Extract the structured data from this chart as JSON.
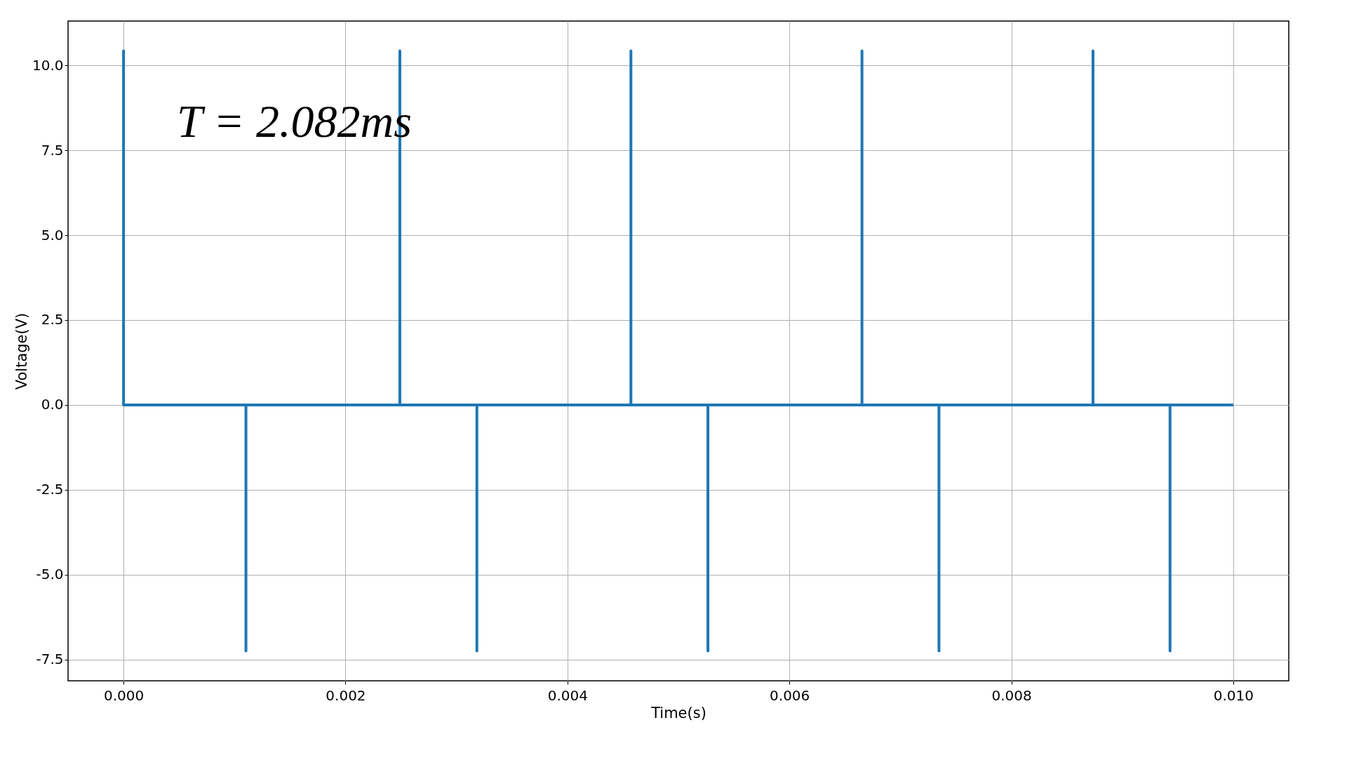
{
  "chart_data": {
    "type": "line",
    "xlabel": "Time(s)",
    "ylabel": "Voltage(V)",
    "annotations": [
      "T = 2.082ms"
    ],
    "series": [
      {
        "color": "#1f77b4",
        "x": [
          0,
          0,
          0,
          0.001103,
          0.001103,
          0.001103,
          0.00249,
          0.00249,
          0.00249,
          0.003184,
          0.003184,
          0.003184,
          0.004572,
          0.004572,
          0.004572,
          0.005266,
          0.005266,
          0.005266,
          0.006654,
          0.006654,
          0.006654,
          0.007348,
          0.007348,
          0.007348,
          0.008736,
          0.008736,
          0.008736,
          0.00943,
          0.00943,
          0.00943,
          0.01
        ],
        "values": [
          0,
          10.43,
          0,
          0,
          -7.25,
          0,
          0,
          10.43,
          0,
          0,
          -7.25,
          0,
          0,
          10.43,
          0,
          0,
          -7.25,
          0,
          0,
          10.43,
          0,
          0,
          -7.25,
          0,
          0,
          10.43,
          0,
          0,
          -7.25,
          0,
          0
        ]
      }
    ],
    "xlim": [
      -0.0005,
      0.0105
    ],
    "ylim": [
      -8.13,
      11.31
    ],
    "xticks": [
      {
        "value": 0,
        "label": "0.000"
      },
      {
        "value": 0.002,
        "label": "0.002"
      },
      {
        "value": 0.004,
        "label": "0.004"
      },
      {
        "value": 0.006,
        "label": "0.006"
      },
      {
        "value": 0.008,
        "label": "0.008"
      },
      {
        "value": 0.01,
        "label": "0.010"
      }
    ],
    "yticks": [
      {
        "value": -7.5,
        "label": "-7.5"
      },
      {
        "value": -5,
        "label": "-5.0"
      },
      {
        "value": -2.5,
        "label": "-2.5"
      },
      {
        "value": 0,
        "label": "0.0"
      },
      {
        "value": 2.5,
        "label": "2.5"
      },
      {
        "value": 5,
        "label": "5.0"
      },
      {
        "value": 7.5,
        "label": "7.5"
      },
      {
        "value": 10,
        "label": "10.0"
      }
    ],
    "grid": true
  }
}
